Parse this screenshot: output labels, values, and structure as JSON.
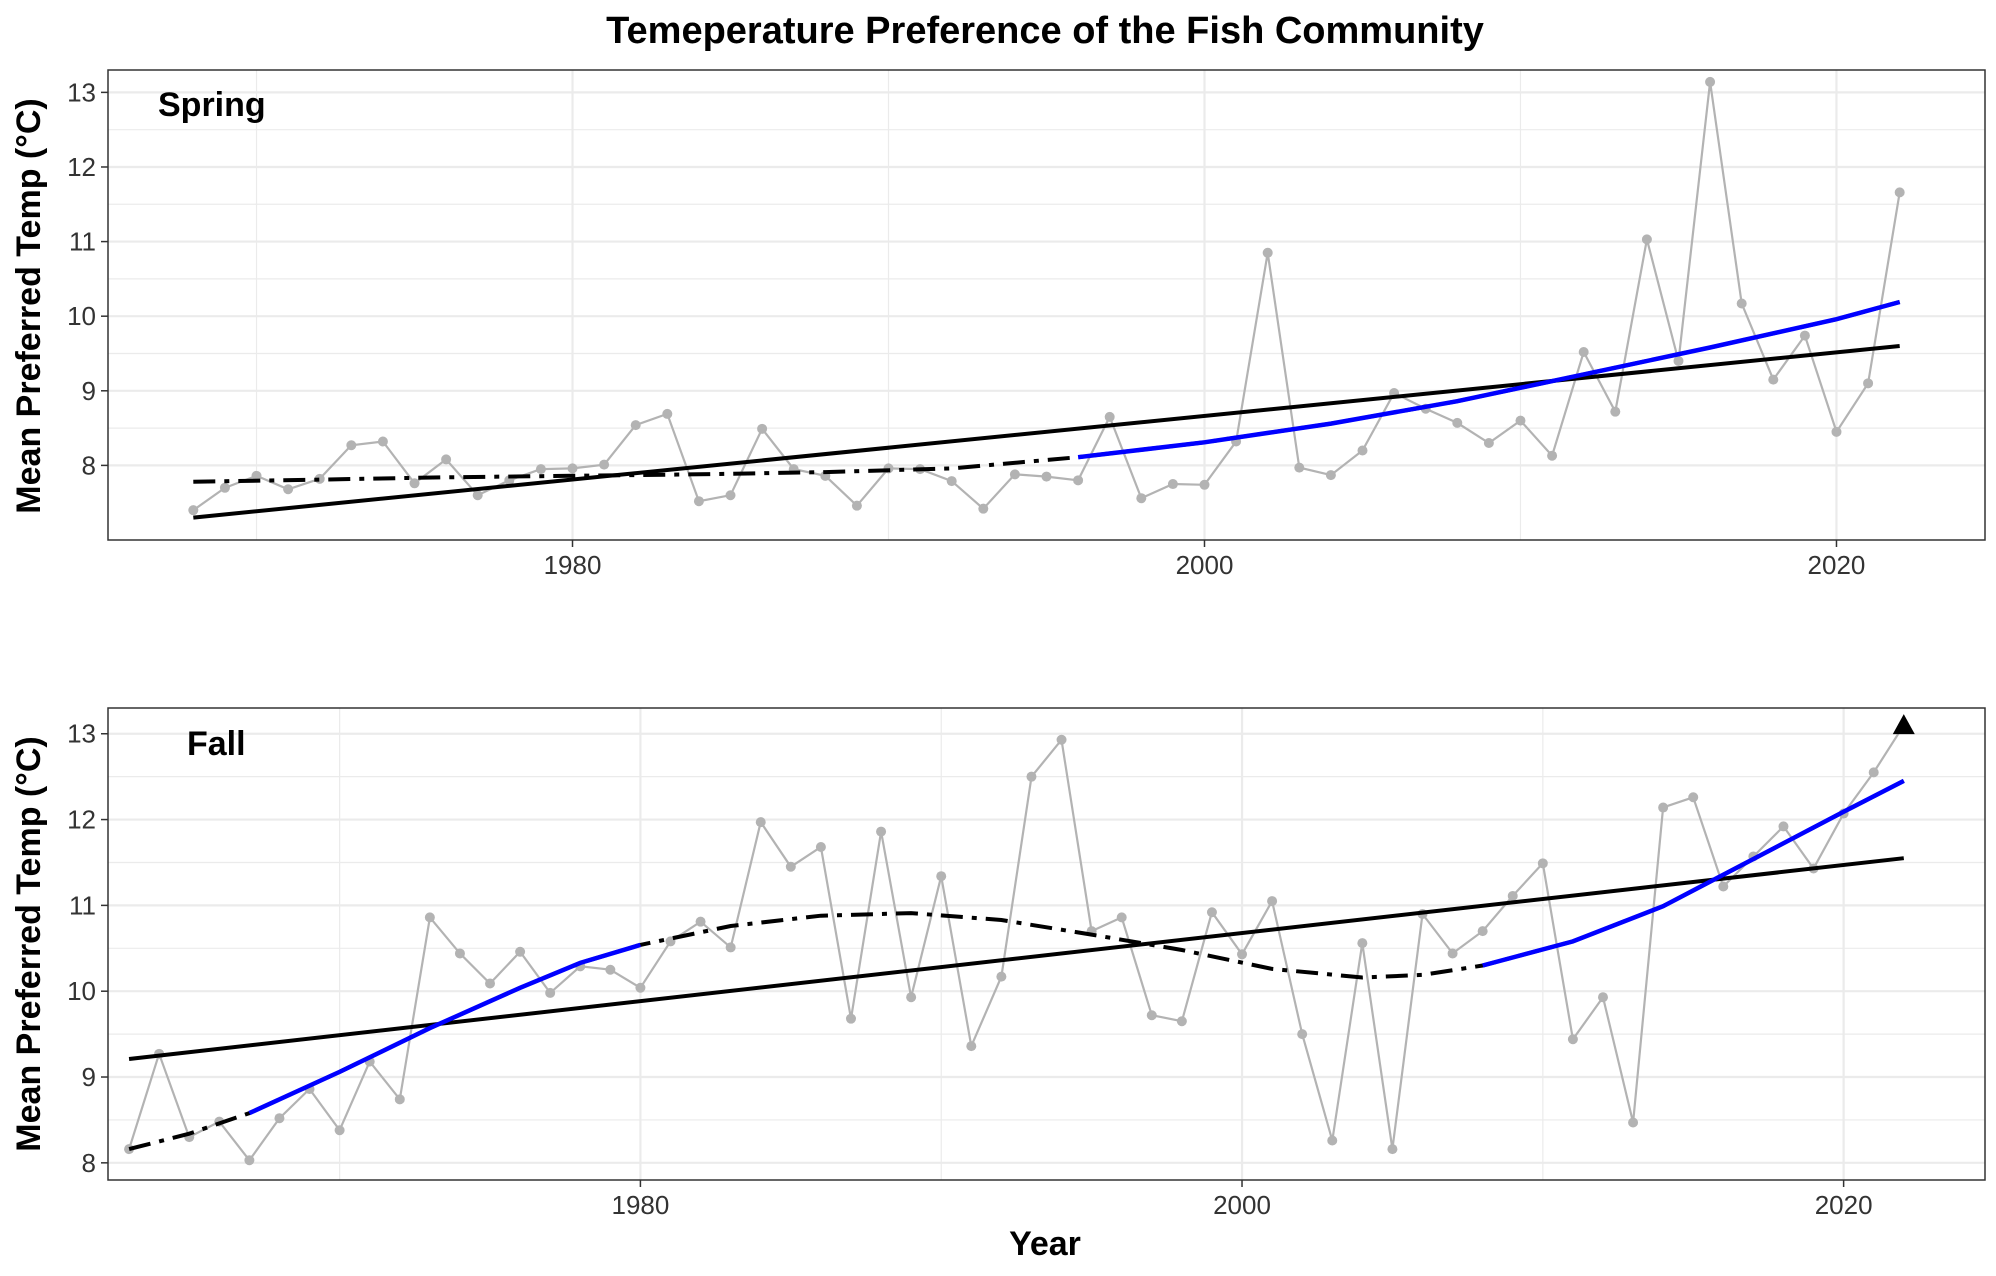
{
  "title": "Temeperature Preference of the Fish Community",
  "colors": {
    "observed": "#b3b3b3",
    "smooth_trend": "#0000ff",
    "linear_trend": "#000000",
    "grid": "#ebebeb",
    "panel_border": "#333333"
  },
  "chart_data": [
    {
      "type": "line",
      "panel": "Spring",
      "xlabel": "Year",
      "ylabel": "Mean Preferred Temp (°C)",
      "xlim": [
        1965.3,
        2024.7
      ],
      "ylim": [
        7.0,
        13.3
      ],
      "x_ticks": [
        1980,
        2000,
        2020
      ],
      "y_ticks": [
        8,
        9,
        10,
        11,
        12,
        13
      ],
      "grid": true,
      "observed": {
        "x": [
          1968,
          1969,
          1970,
          1971,
          1972,
          1973,
          1974,
          1975,
          1976,
          1977,
          1978,
          1979,
          1980,
          1981,
          1982,
          1983,
          1984,
          1985,
          1986,
          1987,
          1988,
          1989,
          1990,
          1991,
          1992,
          1993,
          1994,
          1995,
          1996,
          1997,
          1998,
          1999,
          2000,
          2001,
          2002,
          2003,
          2004,
          2005,
          2006,
          2007,
          2008,
          2009,
          2010,
          2011,
          2012,
          2013,
          2014,
          2015,
          2016,
          2017,
          2018,
          2019,
          2020,
          2021,
          2022
        ],
        "y": [
          7.4,
          7.7,
          7.86,
          7.68,
          7.82,
          8.27,
          8.32,
          7.76,
          8.08,
          7.6,
          7.8,
          7.95,
          7.96,
          8.01,
          8.54,
          8.69,
          7.52,
          7.6,
          8.49,
          7.95,
          7.86,
          7.46,
          7.96,
          7.95,
          7.79,
          7.42,
          7.88,
          7.85,
          7.8,
          8.65,
          7.56,
          7.75,
          7.74,
          8.32,
          10.85,
          7.97,
          7.87,
          8.2,
          8.97,
          8.76,
          8.57,
          8.3,
          8.6,
          8.13,
          9.52,
          8.72,
          11.03,
          9.4,
          13.14,
          10.17,
          9.15,
          9.74,
          8.45,
          9.1,
          11.66
        ]
      },
      "linear_trend": {
        "x": [
          1968,
          2022
        ],
        "y": [
          7.3,
          9.6
        ]
      },
      "smooth_trend": {
        "x": [
          1968,
          1972,
          1976,
          1980,
          1984,
          1988,
          1992,
          1996,
          2000,
          2004,
          2008,
          2012,
          2016,
          2020,
          2022
        ],
        "y": [
          7.78,
          7.81,
          7.84,
          7.86,
          7.88,
          7.91,
          7.96,
          8.11,
          8.31,
          8.56,
          8.86,
          9.22,
          9.58,
          9.96,
          10.19
        ],
        "solid_from": 1996
      }
    },
    {
      "type": "line",
      "panel": "Fall",
      "xlabel": "Year",
      "ylabel": "Mean Preferred Temp (°C)",
      "xlim": [
        1962.3,
        2024.7
      ],
      "ylim": [
        7.8,
        13.3
      ],
      "x_ticks": [
        1980,
        2000,
        2020
      ],
      "y_ticks": [
        8,
        9,
        10,
        11,
        12,
        13
      ],
      "grid": true,
      "observed": {
        "x": [
          1963,
          1964,
          1965,
          1966,
          1967,
          1968,
          1969,
          1970,
          1971,
          1972,
          1973,
          1974,
          1975,
          1976,
          1977,
          1978,
          1979,
          1980,
          1981,
          1982,
          1983,
          1984,
          1985,
          1986,
          1987,
          1988,
          1989,
          1990,
          1991,
          1992,
          1993,
          1994,
          1995,
          1996,
          1997,
          1998,
          1999,
          2000,
          2001,
          2002,
          2003,
          2004,
          2005,
          2006,
          2007,
          2008,
          2009,
          2010,
          2011,
          2012,
          2013,
          2014,
          2015,
          2016,
          2017,
          2018,
          2019,
          2020,
          2021,
          2022
        ],
        "y": [
          8.16,
          9.27,
          8.3,
          8.48,
          8.03,
          8.52,
          8.86,
          8.38,
          9.18,
          8.74,
          10.86,
          10.44,
          10.09,
          10.46,
          9.98,
          10.29,
          10.25,
          10.04,
          10.58,
          10.81,
          10.51,
          11.97,
          11.45,
          11.68,
          9.68,
          11.86,
          9.93,
          11.34,
          9.36,
          10.17,
          12.5,
          12.93,
          10.7,
          10.86,
          9.72,
          9.65,
          10.92,
          10.43,
          11.05,
          9.5,
          8.26,
          10.56,
          8.16,
          10.9,
          10.44,
          10.7,
          11.11,
          11.49,
          9.44,
          9.93,
          8.47,
          12.14,
          12.26,
          11.22,
          11.57,
          11.92,
          11.43,
          12.07,
          12.55,
          13.1
        ]
      },
      "marker": {
        "x": 2022,
        "y": 13.1,
        "shape": "triangle"
      },
      "linear_trend": {
        "x": [
          1963,
          2022
        ],
        "y": [
          9.21,
          11.55
        ]
      },
      "smooth_trend": {
        "x": [
          1963,
          1965,
          1967,
          1970,
          1973,
          1976,
          1978,
          1980,
          1983,
          1986,
          1989,
          1992,
          1995,
          1998,
          2001,
          2004,
          2006,
          2008,
          2011,
          2014,
          2017,
          2020,
          2022
        ],
        "y": [
          8.16,
          8.34,
          8.58,
          9.06,
          9.57,
          10.04,
          10.33,
          10.54,
          10.76,
          10.88,
          10.91,
          10.83,
          10.66,
          10.48,
          10.26,
          10.16,
          10.19,
          10.3,
          10.58,
          10.99,
          11.54,
          12.09,
          12.45
        ],
        "solid_ranges": [
          [
            1967,
            1980
          ],
          [
            2008,
            2022
          ]
        ]
      }
    }
  ]
}
